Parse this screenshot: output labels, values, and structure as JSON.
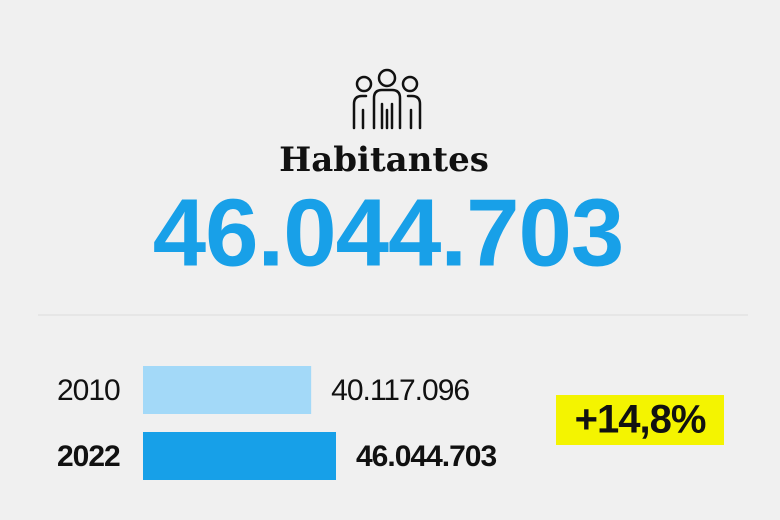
{
  "chart_data": {
    "type": "bar",
    "orientation": "horizontal",
    "title": "Habitantes",
    "headline": "46.044.703",
    "categories": [
      "2010",
      "2022"
    ],
    "values": [
      40117096,
      46044703
    ],
    "value_labels": [
      "40.117.096",
      "46.044.703"
    ],
    "colors": [
      "#a3d9f8",
      "#17a0e8"
    ],
    "annotation": "+14,8%",
    "annotation_color": "#f4f400"
  }
}
